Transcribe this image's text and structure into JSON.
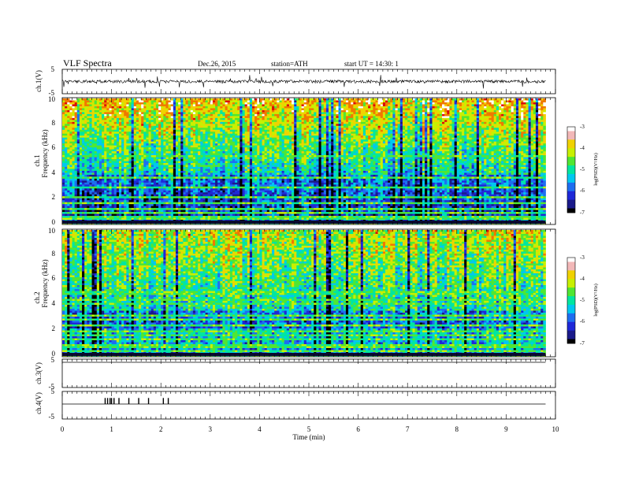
{
  "header": {
    "title": "VLF  Spectra",
    "date": "Dec.26, 2015",
    "station": "station=ATH",
    "start": "start  UT  =   14:30: 1"
  },
  "colors": {
    "colormap": [
      "#000000",
      "#1a1a8a",
      "#1e28d8",
      "#1e6ef0",
      "#00c8f0",
      "#00e6a0",
      "#50e632",
      "#c8f000",
      "#f0d200",
      "#f07800",
      "#dc0a0a",
      "#f2b8b8",
      "#ffffff"
    ]
  },
  "chart_data": [
    {
      "type": "line",
      "id": "ch1-waveform",
      "ylabel": "ch.1(V)",
      "ylim": [
        -5,
        5
      ],
      "yticks": [
        "5",
        "-5"
      ],
      "xlim": [
        0,
        10
      ],
      "description_values": {
        "baseline": 0,
        "typical_amplitude": 1,
        "spike_amplitude": 3
      }
    },
    {
      "type": "heatmap",
      "id": "ch1-spectrogram",
      "channel_label": "ch.1",
      "ylabel": "Frequency  (kHz)",
      "ylim": [
        0,
        10
      ],
      "yticks": [
        "0",
        "2",
        "4",
        "6",
        "8",
        "10"
      ],
      "xlim": [
        0,
        9.8
      ],
      "colorbar": {
        "label": "log(PSD)(V²/Hz)",
        "range": [
          -7,
          -3
        ],
        "ticks": [
          "-3",
          "-4",
          "-5",
          "-6",
          "-7"
        ]
      }
    },
    {
      "type": "heatmap",
      "id": "ch2-spectrogram",
      "channel_label": "ch.2",
      "ylabel": "Frequency  (kHz)",
      "ylim": [
        0,
        10
      ],
      "yticks": [
        "0",
        "2",
        "4",
        "6",
        "8",
        "10"
      ],
      "xlim": [
        0,
        9.8
      ],
      "colorbar": {
        "label": "log(PSD)(V²/Hz)",
        "range": [
          -7,
          -3
        ],
        "ticks": [
          "-3",
          "-4",
          "-5",
          "-6",
          "-7"
        ]
      }
    },
    {
      "type": "line",
      "id": "ch3-waveform",
      "ylabel": "ch.3(V)",
      "ylim": [
        -5,
        5
      ],
      "yticks": [
        "5",
        "-5"
      ],
      "values": {
        "constant": 0
      }
    },
    {
      "type": "line",
      "id": "ch4-waveform",
      "ylabel": "ch.4(V)",
      "ylim": [
        -5,
        5
      ],
      "yticks": [
        "5",
        "-5"
      ],
      "pulse_times": [
        0.87,
        0.92,
        0.97,
        1.0,
        1.05,
        1.15,
        1.35,
        1.55,
        1.75,
        2.05,
        2.15
      ],
      "pulse_height": 1.2
    },
    {
      "type": "line",
      "id": "time-axis",
      "xlabel": "Time  (min)",
      "xlim": [
        0,
        10
      ],
      "xticks": [
        "0",
        "1",
        "2",
        "3",
        "4",
        "5",
        "6",
        "7",
        "8",
        "9",
        "10"
      ]
    }
  ]
}
